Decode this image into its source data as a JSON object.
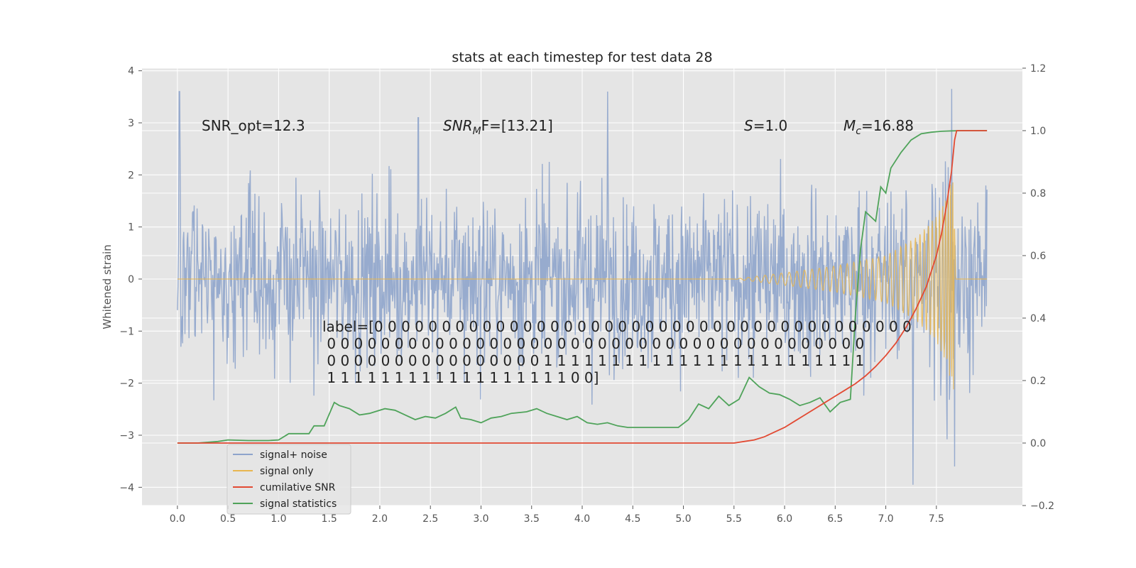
{
  "chart_data": {
    "type": "line",
    "title": "stats at each timestep for test data 28",
    "ylabel": "Whitened strain",
    "xlabel": "",
    "xlim": [
      -0.35,
      8.35
    ],
    "ylim": [
      -4.35,
      4.05
    ],
    "y2lim": [
      -0.2,
      1.2
    ],
    "x_ticks": [
      "0.0",
      "0.5",
      "1.0",
      "1.5",
      "2.0",
      "2.5",
      "3.0",
      "3.5",
      "4.0",
      "4.5",
      "5.0",
      "5.5",
      "6.0",
      "6.5",
      "7.0",
      "7.5"
    ],
    "y_ticks": [
      "4",
      "3",
      "2",
      "1",
      "0",
      "−1",
      "−2",
      "−3",
      "−4"
    ],
    "y2_ticks": [
      "1.2",
      "1.0",
      "0.8",
      "0.6",
      "0.4",
      "0.2",
      "0.0",
      "−0.2"
    ],
    "grid": true,
    "legend": {
      "position": "lower-left",
      "entries": [
        "signal+ noise",
        "signal only",
        "cumilative SNR",
        "signal statistics"
      ]
    },
    "annotations": {
      "snr_opt": "SNR_opt=12.3",
      "snr_mf_base": "SNR",
      "snr_mf_sub": "M",
      "snr_mf_rest": "F=[13.21]",
      "s_var": "S",
      "s_rest": "=1.0",
      "mc_var": "M",
      "mc_sub": "c",
      "mc_rest": "=16.88",
      "label_lines": [
        "label=[0 0 0 0 0 0 0 0 0 0 0 0 0 0 0 0 0 0 0 0 0 0 0 0 0 0 0 0 0 0 0 0 0 0 0 0 0 0 0 0",
        " 0 0 0 0 0 0 0 0 0 0 0 0 0 0 0 0 0 0 0 0 0 0 0 0 0 0 0 0 0 0 0 0 0 0 0 0 0 0 0 0",
        " 0 0 0 0 0 0 0 0 0 0 0 0 0 0 0 0 1 1 1 1 1 1 1 1 1 1 1 1 1 1 1 1 1 1 1 1 1 1 1 1",
        " 1 1 1 1 1 1 1 1 1 1 1 1 1 1 1 1 1 1 0 0]"
      ]
    },
    "series": [
      {
        "name": "signal+ noise",
        "axis": "left",
        "color": "#8ea4cb",
        "x_range": [
          0.0,
          8.0
        ],
        "amplitude_envelope": [
          1.5,
          2.6
        ],
        "notable_peaks": [
          [
            0.02,
            3.6
          ],
          [
            2.38,
            3.1
          ],
          [
            4.25,
            3.6
          ],
          [
            7.65,
            3.65
          ],
          [
            7.27,
            -3.95
          ],
          [
            7.68,
            -3.6
          ]
        ]
      },
      {
        "name": "signal only",
        "axis": "left",
        "color": "#e8b650",
        "x_range": [
          0.0,
          8.0
        ],
        "chirp_envelope": [
          [
            0.0,
            0.0
          ],
          [
            5.5,
            0.0
          ],
          [
            6.0,
            0.12
          ],
          [
            6.5,
            0.25
          ],
          [
            7.0,
            0.45
          ],
          [
            7.3,
            0.8
          ],
          [
            7.5,
            1.2
          ],
          [
            7.6,
            1.6
          ],
          [
            7.67,
            2.2
          ],
          [
            7.69,
            0.0
          ],
          [
            8.0,
            0.0
          ]
        ]
      },
      {
        "name": "cumilative SNR",
        "axis": "right",
        "color": "#e24a33",
        "x": [
          0.0,
          1.0,
          2.0,
          3.0,
          4.0,
          5.0,
          5.5,
          5.6,
          5.7,
          5.8,
          5.9,
          6.0,
          6.1,
          6.2,
          6.3,
          6.4,
          6.5,
          6.6,
          6.7,
          6.8,
          6.9,
          7.0,
          7.1,
          7.2,
          7.3,
          7.4,
          7.45,
          7.5,
          7.55,
          7.6,
          7.65,
          7.68,
          7.7,
          7.8,
          7.9,
          8.0
        ],
        "values": [
          0.0,
          0.0,
          0.0,
          0.0,
          0.0,
          0.0,
          0.0,
          0.005,
          0.01,
          0.02,
          0.035,
          0.05,
          0.07,
          0.09,
          0.11,
          0.13,
          0.15,
          0.17,
          0.19,
          0.215,
          0.245,
          0.28,
          0.32,
          0.37,
          0.43,
          0.5,
          0.55,
          0.6,
          0.67,
          0.76,
          0.87,
          0.97,
          1.0,
          1.0,
          1.0,
          1.0
        ]
      },
      {
        "name": "signal statistics",
        "axis": "right",
        "color": "#4fa35a",
        "x": [
          0.0,
          0.2,
          0.4,
          0.5,
          0.7,
          0.9,
          1.0,
          1.1,
          1.2,
          1.3,
          1.35,
          1.45,
          1.55,
          1.6,
          1.7,
          1.8,
          1.9,
          1.95,
          2.05,
          2.15,
          2.25,
          2.35,
          2.45,
          2.55,
          2.65,
          2.75,
          2.8,
          2.9,
          3.0,
          3.1,
          3.2,
          3.3,
          3.45,
          3.55,
          3.65,
          3.75,
          3.85,
          3.95,
          4.05,
          4.15,
          4.25,
          4.35,
          4.45,
          4.55,
          4.65,
          4.75,
          4.85,
          4.95,
          5.05,
          5.15,
          5.25,
          5.35,
          5.45,
          5.55,
          5.65,
          5.75,
          5.85,
          5.95,
          6.05,
          6.15,
          6.25,
          6.35,
          6.45,
          6.55,
          6.65,
          6.7,
          6.75,
          6.8,
          6.9,
          6.95,
          7.0,
          7.05,
          7.15,
          7.25,
          7.35,
          7.45,
          7.55,
          7.65,
          7.75,
          7.85,
          7.95,
          8.0
        ],
        "values": [
          0.0,
          0.0,
          0.005,
          0.01,
          0.008,
          0.008,
          0.01,
          0.03,
          0.03,
          0.03,
          0.055,
          0.055,
          0.13,
          0.12,
          0.11,
          0.09,
          0.095,
          0.1,
          0.11,
          0.105,
          0.09,
          0.075,
          0.085,
          0.08,
          0.095,
          0.115,
          0.08,
          0.075,
          0.065,
          0.08,
          0.085,
          0.095,
          0.1,
          0.11,
          0.095,
          0.085,
          0.075,
          0.085,
          0.065,
          0.06,
          0.065,
          0.055,
          0.05,
          0.05,
          0.05,
          0.05,
          0.05,
          0.05,
          0.075,
          0.125,
          0.11,
          0.15,
          0.12,
          0.14,
          0.21,
          0.18,
          0.16,
          0.155,
          0.14,
          0.12,
          0.13,
          0.145,
          0.1,
          0.13,
          0.14,
          0.41,
          0.62,
          0.74,
          0.71,
          0.82,
          0.8,
          0.88,
          0.93,
          0.97,
          0.99,
          0.995,
          0.998,
          0.999,
          1.0,
          1.0,
          1.0,
          1.0
        ]
      }
    ]
  }
}
